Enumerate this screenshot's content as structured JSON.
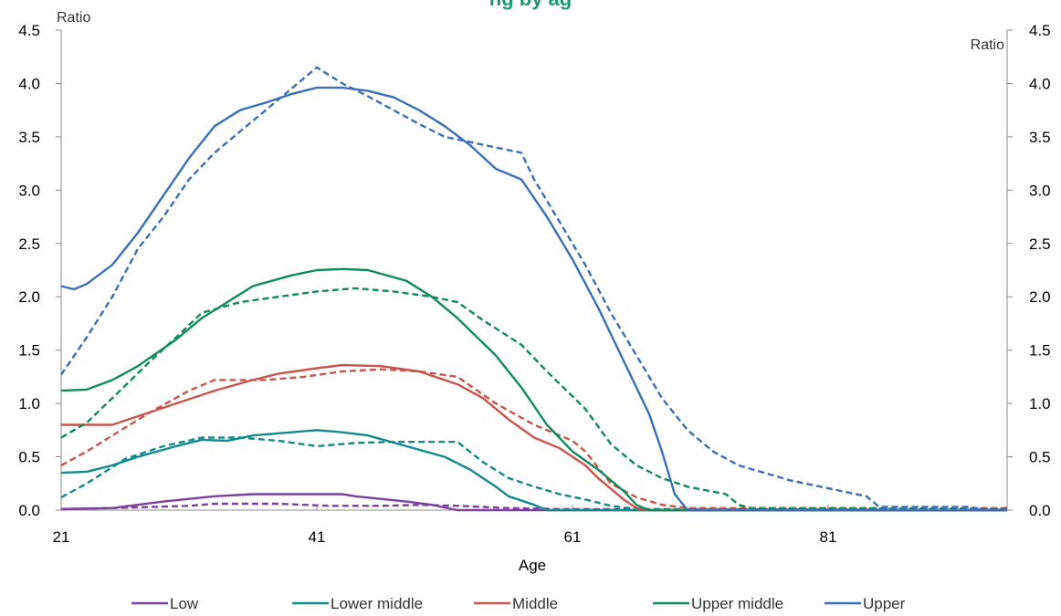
{
  "chart_data": {
    "type": "line",
    "title": "ng by ag",
    "xlabel": "Age",
    "ylabel_left": "Ratio",
    "ylabel_right": "Ratio",
    "xlim": [
      21,
      95
    ],
    "ylim": [
      0,
      4.5
    ],
    "x_ticks": [
      "21",
      "41",
      "61",
      "81"
    ],
    "y_ticks": [
      "0.0",
      "0.5",
      "1.0",
      "1.5",
      "2.0",
      "2.5",
      "3.0",
      "3.5",
      "4.0",
      "4.5"
    ],
    "legend_position": "bottom",
    "series": [
      {
        "name": "Low",
        "color": "#7b3f9e",
        "style": "solid",
        "in_legend": true,
        "points": [
          [
            21,
            0.01
          ],
          [
            25,
            0.02
          ],
          [
            29,
            0.08
          ],
          [
            33,
            0.13
          ],
          [
            36,
            0.15
          ],
          [
            40,
            0.15
          ],
          [
            43,
            0.15
          ],
          [
            44,
            0.13
          ],
          [
            48,
            0.08
          ],
          [
            50,
            0.05
          ],
          [
            52,
            0.0
          ],
          [
            95,
            0.0
          ]
        ]
      },
      {
        "name": "Low",
        "color": "#7b3f9e",
        "style": "dashed",
        "in_legend": false,
        "points": [
          [
            21,
            0.01
          ],
          [
            25,
            0.02
          ],
          [
            31,
            0.04
          ],
          [
            33,
            0.06
          ],
          [
            38,
            0.06
          ],
          [
            42,
            0.04
          ],
          [
            46,
            0.04
          ],
          [
            49,
            0.05
          ],
          [
            52,
            0.04
          ],
          [
            56,
            0.02
          ],
          [
            60,
            0.01
          ],
          [
            95,
            0.0
          ]
        ]
      },
      {
        "name": "Lower middle",
        "color": "#14888f",
        "style": "solid",
        "in_legend": true,
        "points": [
          [
            21,
            0.35
          ],
          [
            23,
            0.36
          ],
          [
            25,
            0.42
          ],
          [
            27,
            0.5
          ],
          [
            30,
            0.6
          ],
          [
            32,
            0.66
          ],
          [
            34,
            0.65
          ],
          [
            36,
            0.7
          ],
          [
            39,
            0.73
          ],
          [
            41,
            0.75
          ],
          [
            43,
            0.73
          ],
          [
            45,
            0.7
          ],
          [
            48,
            0.6
          ],
          [
            51,
            0.5
          ],
          [
            53,
            0.38
          ],
          [
            55,
            0.22
          ],
          [
            56,
            0.13
          ],
          [
            58,
            0.05
          ],
          [
            59,
            0.0
          ],
          [
            95,
            0.0
          ]
        ]
      },
      {
        "name": "Lower middle",
        "color": "#14888f",
        "style": "dashed",
        "in_legend": false,
        "points": [
          [
            21,
            0.12
          ],
          [
            23,
            0.25
          ],
          [
            26,
            0.48
          ],
          [
            29,
            0.6
          ],
          [
            32,
            0.68
          ],
          [
            35,
            0.68
          ],
          [
            38,
            0.65
          ],
          [
            41,
            0.6
          ],
          [
            44,
            0.63
          ],
          [
            47,
            0.64
          ],
          [
            52,
            0.64
          ],
          [
            54,
            0.45
          ],
          [
            56,
            0.3
          ],
          [
            58,
            0.22
          ],
          [
            60,
            0.15
          ],
          [
            62,
            0.1
          ],
          [
            64,
            0.04
          ],
          [
            66,
            0.01
          ],
          [
            95,
            0.0
          ]
        ]
      },
      {
        "name": "Middle",
        "color": "#c9544b",
        "style": "solid",
        "in_legend": true,
        "points": [
          [
            21,
            0.8
          ],
          [
            25,
            0.8
          ],
          [
            27,
            0.88
          ],
          [
            30,
            1.0
          ],
          [
            33,
            1.12
          ],
          [
            36,
            1.22
          ],
          [
            38,
            1.28
          ],
          [
            41,
            1.33
          ],
          [
            43,
            1.36
          ],
          [
            46,
            1.35
          ],
          [
            49,
            1.3
          ],
          [
            52,
            1.18
          ],
          [
            54,
            1.05
          ],
          [
            56,
            0.85
          ],
          [
            58,
            0.68
          ],
          [
            60,
            0.58
          ],
          [
            62,
            0.42
          ],
          [
            63,
            0.3
          ],
          [
            64,
            0.2
          ],
          [
            65,
            0.1
          ],
          [
            66,
            0.02
          ],
          [
            67,
            0.0
          ],
          [
            95,
            0.0
          ]
        ]
      },
      {
        "name": "Middle",
        "color": "#c9544b",
        "style": "dashed",
        "in_legend": false,
        "points": [
          [
            21,
            0.42
          ],
          [
            23,
            0.55
          ],
          [
            25,
            0.7
          ],
          [
            28,
            0.92
          ],
          [
            31,
            1.12
          ],
          [
            33,
            1.22
          ],
          [
            37,
            1.22
          ],
          [
            40,
            1.25
          ],
          [
            43,
            1.3
          ],
          [
            46,
            1.32
          ],
          [
            49,
            1.3
          ],
          [
            52,
            1.25
          ],
          [
            55,
            1.0
          ],
          [
            58,
            0.8
          ],
          [
            61,
            0.65
          ],
          [
            62,
            0.55
          ],
          [
            64,
            0.25
          ],
          [
            66,
            0.12
          ],
          [
            68,
            0.05
          ],
          [
            70,
            0.02
          ],
          [
            95,
            0.02
          ]
        ]
      },
      {
        "name": "Upper middle",
        "color": "#108b5a",
        "style": "solid",
        "in_legend": true,
        "points": [
          [
            21,
            1.12
          ],
          [
            23,
            1.13
          ],
          [
            25,
            1.22
          ],
          [
            27,
            1.35
          ],
          [
            30,
            1.6
          ],
          [
            32,
            1.8
          ],
          [
            34,
            1.95
          ],
          [
            36,
            2.1
          ],
          [
            39,
            2.2
          ],
          [
            41,
            2.25
          ],
          [
            43,
            2.26
          ],
          [
            45,
            2.25
          ],
          [
            48,
            2.15
          ],
          [
            50,
            2.0
          ],
          [
            52,
            1.8
          ],
          [
            55,
            1.45
          ],
          [
            57,
            1.15
          ],
          [
            59,
            0.8
          ],
          [
            61,
            0.55
          ],
          [
            63,
            0.38
          ],
          [
            65,
            0.18
          ],
          [
            66,
            0.05
          ],
          [
            67,
            0.0
          ],
          [
            95,
            0.0
          ]
        ]
      },
      {
        "name": "Upper middle",
        "color": "#108b5a",
        "style": "dashed",
        "in_legend": false,
        "points": [
          [
            21,
            0.68
          ],
          [
            23,
            0.82
          ],
          [
            25,
            1.05
          ],
          [
            28,
            1.4
          ],
          [
            30,
            1.62
          ],
          [
            32,
            1.85
          ],
          [
            35,
            1.95
          ],
          [
            38,
            2.0
          ],
          [
            41,
            2.05
          ],
          [
            44,
            2.08
          ],
          [
            47,
            2.05
          ],
          [
            50,
            2.0
          ],
          [
            52,
            1.95
          ],
          [
            54,
            1.78
          ],
          [
            57,
            1.55
          ],
          [
            59,
            1.3
          ],
          [
            62,
            0.95
          ],
          [
            64,
            0.62
          ],
          [
            66,
            0.42
          ],
          [
            68,
            0.3
          ],
          [
            70,
            0.22
          ],
          [
            73,
            0.15
          ],
          [
            74,
            0.05
          ],
          [
            75,
            0.02
          ],
          [
            95,
            0.01
          ]
        ]
      },
      {
        "name": "Upper",
        "color": "#3a6fb5",
        "style": "solid",
        "in_legend": true,
        "points": [
          [
            21,
            2.1
          ],
          [
            22,
            2.07
          ],
          [
            23,
            2.12
          ],
          [
            25,
            2.3
          ],
          [
            27,
            2.6
          ],
          [
            29,
            2.95
          ],
          [
            31,
            3.3
          ],
          [
            33,
            3.6
          ],
          [
            35,
            3.75
          ],
          [
            37,
            3.82
          ],
          [
            39,
            3.9
          ],
          [
            41,
            3.96
          ],
          [
            43,
            3.96
          ],
          [
            45,
            3.93
          ],
          [
            47,
            3.87
          ],
          [
            49,
            3.75
          ],
          [
            51,
            3.6
          ],
          [
            53,
            3.42
          ],
          [
            55,
            3.2
          ],
          [
            57,
            3.1
          ],
          [
            59,
            2.75
          ],
          [
            61,
            2.35
          ],
          [
            63,
            1.9
          ],
          [
            65,
            1.4
          ],
          [
            67,
            0.9
          ],
          [
            68,
            0.55
          ],
          [
            69,
            0.15
          ],
          [
            70,
            0.0
          ],
          [
            95,
            0.0
          ]
        ]
      },
      {
        "name": "Upper",
        "color": "#3a6fb5",
        "style": "dashed",
        "in_legend": false,
        "points": [
          [
            21,
            1.27
          ],
          [
            23,
            1.62
          ],
          [
            25,
            2.0
          ],
          [
            27,
            2.45
          ],
          [
            29,
            2.75
          ],
          [
            31,
            3.1
          ],
          [
            33,
            3.35
          ],
          [
            35,
            3.55
          ],
          [
            37,
            3.75
          ],
          [
            39,
            3.95
          ],
          [
            41,
            4.15
          ],
          [
            43,
            4.0
          ],
          [
            45,
            3.88
          ],
          [
            47,
            3.75
          ],
          [
            49,
            3.62
          ],
          [
            51,
            3.5
          ],
          [
            53,
            3.45
          ],
          [
            55,
            3.4
          ],
          [
            57,
            3.35
          ],
          [
            58,
            3.1
          ],
          [
            60,
            2.7
          ],
          [
            62,
            2.3
          ],
          [
            64,
            1.85
          ],
          [
            66,
            1.45
          ],
          [
            68,
            1.05
          ],
          [
            70,
            0.75
          ],
          [
            72,
            0.55
          ],
          [
            74,
            0.42
          ],
          [
            76,
            0.35
          ],
          [
            78,
            0.28
          ],
          [
            80,
            0.23
          ],
          [
            82,
            0.18
          ],
          [
            84,
            0.13
          ],
          [
            85,
            0.03
          ],
          [
            92,
            0.03
          ],
          [
            93,
            0.01
          ],
          [
            95,
            0.01
          ]
        ]
      }
    ]
  }
}
